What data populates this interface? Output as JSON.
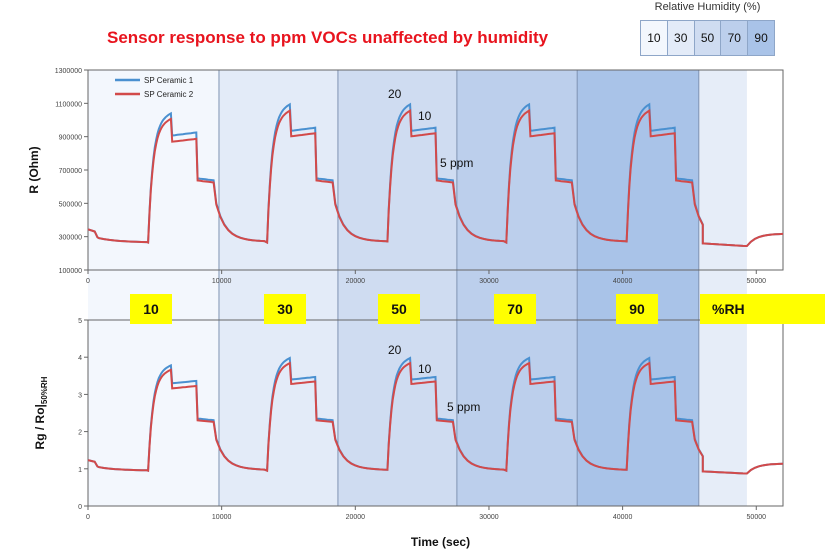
{
  "title": "Sensor response to ppm VOCs unaffected by humidity",
  "rh_legend": {
    "title": "Relative Humidity (%)",
    "levels": [
      "10",
      "30",
      "50",
      "70",
      "90"
    ],
    "colors": [
      "#f3f7fd",
      "#e3ebf8",
      "#cfdcf1",
      "#bccfec",
      "#a9c3e8"
    ]
  },
  "chart_data": [
    {
      "type": "line",
      "title": "",
      "xlabel": "",
      "ylabel": "R (Ohm)",
      "xlim": [
        0,
        52000
      ],
      "ylim": [
        100000,
        1300000
      ],
      "x_ticks": [
        "0",
        "10000",
        "20000",
        "30000",
        "40000",
        "50000"
      ],
      "y_ticks": [
        "100000",
        "300000",
        "500000",
        "700000",
        "900000",
        "1100000",
        "1300000"
      ],
      "legend": "top-left",
      "series": [
        {
          "name": "SP Ceramic 1",
          "color": "#4a90d0"
        },
        {
          "name": "SP Ceramic 2",
          "color": "#d24a4a"
        }
      ],
      "cycle_levels": {
        "baseline": 265000,
        "ppm20": 1100000,
        "ppm10": 935000,
        "ppm5": 650000
      },
      "annotations": [
        "20",
        "10",
        "5 ppm"
      ]
    },
    {
      "type": "line",
      "title": "",
      "xlabel": "Time (sec)",
      "ylabel": "Rg / Ro|",
      "ylabel_subscript": "50%RH",
      "xlim": [
        0,
        52000
      ],
      "ylim": [
        0,
        5
      ],
      "x_ticks": [
        "0",
        "10000",
        "20000",
        "30000",
        "40000",
        "50000"
      ],
      "y_ticks": [
        "0",
        "1",
        "2",
        "3",
        "4",
        "5"
      ],
      "series": [
        {
          "name": "SP Ceramic 1",
          "color": "#4a90d0"
        },
        {
          "name": "SP Ceramic 2",
          "color": "#d24a4a"
        }
      ],
      "cycle_levels": {
        "baseline": 0.95,
        "ppm20": 4.0,
        "ppm10": 3.4,
        "ppm5": 2.35
      },
      "annotations": [
        "20",
        "10",
        "5 ppm"
      ]
    }
  ],
  "bands": {
    "boundaries_sec": [
      0,
      9800,
      18700,
      27600,
      36600,
      45700,
      49300
    ],
    "labels": [
      "10",
      "30",
      "50",
      "70",
      "90",
      "%RH"
    ]
  }
}
